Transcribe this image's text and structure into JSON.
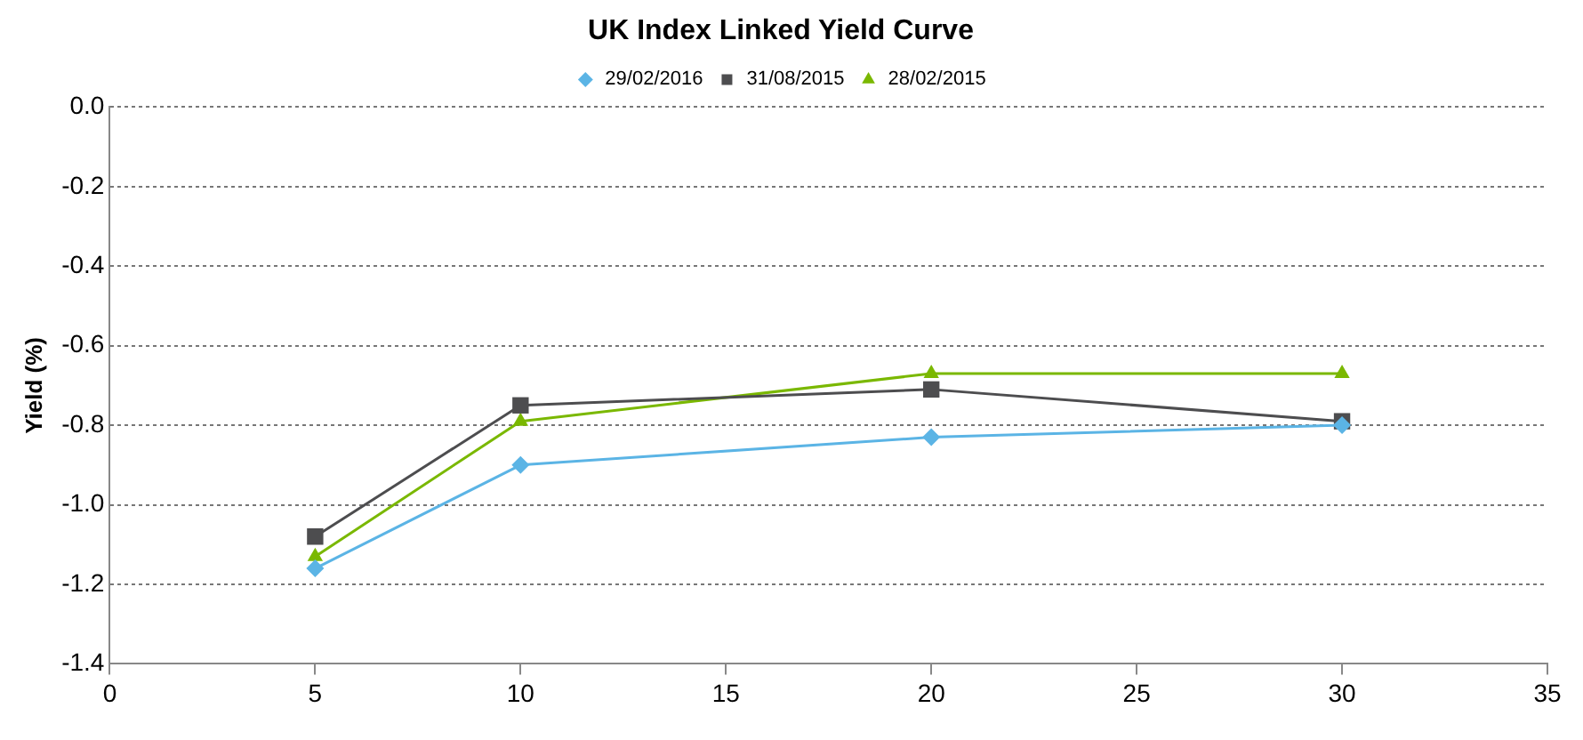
{
  "chart_data": {
    "type": "line",
    "title": "UK Index Linked Yield Curve",
    "ylabel": "Yield (%)",
    "x": [
      5,
      10,
      20,
      30
    ],
    "series": [
      {
        "name": "29/02/2016",
        "color": "#5bb4e5",
        "marker": "diamond",
        "values": [
          -1.16,
          -0.9,
          -0.83,
          -0.8
        ]
      },
      {
        "name": "31/08/2015",
        "color": "#4d4d4f",
        "marker": "square",
        "values": [
          -1.08,
          -0.75,
          -0.71,
          -0.79
        ]
      },
      {
        "name": "28/02/2015",
        "color": "#7ab800",
        "marker": "triangle",
        "values": [
          -1.13,
          -0.79,
          -0.67,
          -0.67
        ]
      }
    ],
    "xlim": [
      0,
      35
    ],
    "xticks": [
      0,
      5,
      10,
      15,
      20,
      25,
      30,
      35
    ],
    "ylim": [
      -1.4,
      0
    ],
    "yticks": [
      {
        "value": -1.4,
        "label": "-1.4"
      },
      {
        "value": -1.2,
        "label": "-1.2"
      },
      {
        "value": -1,
        "label": "-1.0"
      },
      {
        "value": -0.8,
        "label": "-0.8"
      },
      {
        "value": -0.6,
        "label": "-0.6"
      },
      {
        "value": -0.4,
        "label": "-0.4"
      },
      {
        "value": -0.2,
        "label": "-0.2"
      },
      {
        "value": 0,
        "label": "0.0"
      }
    ],
    "grid": "y",
    "legend": "top"
  }
}
